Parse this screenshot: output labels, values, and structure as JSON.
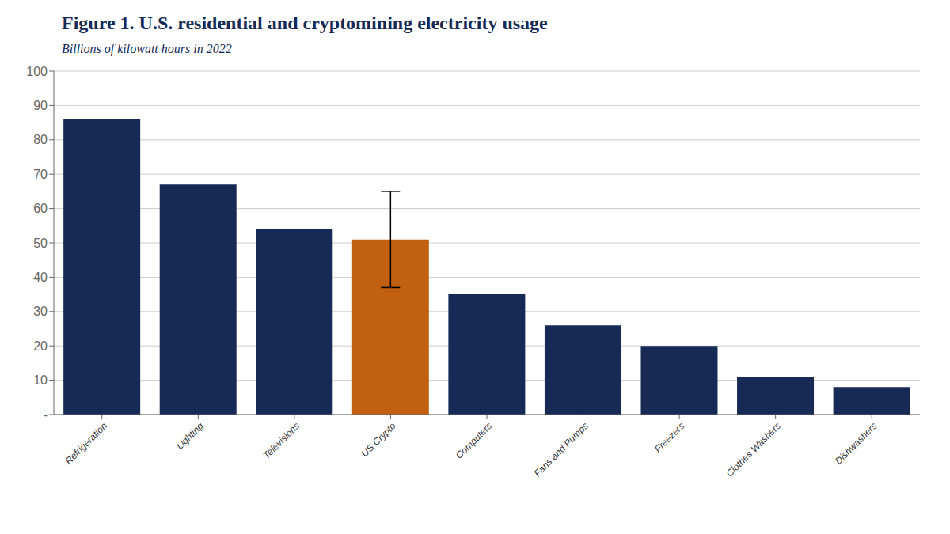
{
  "chart_data": {
    "type": "bar",
    "title": "Figure 1. U.S. residential and cryptomining electricity usage",
    "subtitle": "Billions of kilowatt hours in 2022",
    "categories": [
      "Refrigeration",
      "Lighting",
      "Televisions",
      "US Crypto",
      "Computers",
      "Fans and Pumps",
      "Freezers",
      "Clothes Washers",
      "Dishwashers"
    ],
    "values": [
      86,
      67,
      54,
      51,
      35,
      26,
      20,
      11,
      8
    ],
    "error_low": [
      null,
      null,
      null,
      14,
      null,
      null,
      null,
      null,
      null
    ],
    "error_high": [
      null,
      null,
      null,
      14,
      null,
      null,
      null,
      null,
      null
    ],
    "colors": [
      "#162a55",
      "#162a55",
      "#162a55",
      "#c06010",
      "#162a55",
      "#162a55",
      "#162a55",
      "#162a55",
      "#162a55"
    ],
    "ylim": [
      0,
      100
    ],
    "yticks": [
      {
        "value": 0,
        "label": "-"
      },
      10,
      20,
      30,
      40,
      50,
      60,
      70,
      80,
      90,
      100
    ],
    "grid": true
  }
}
